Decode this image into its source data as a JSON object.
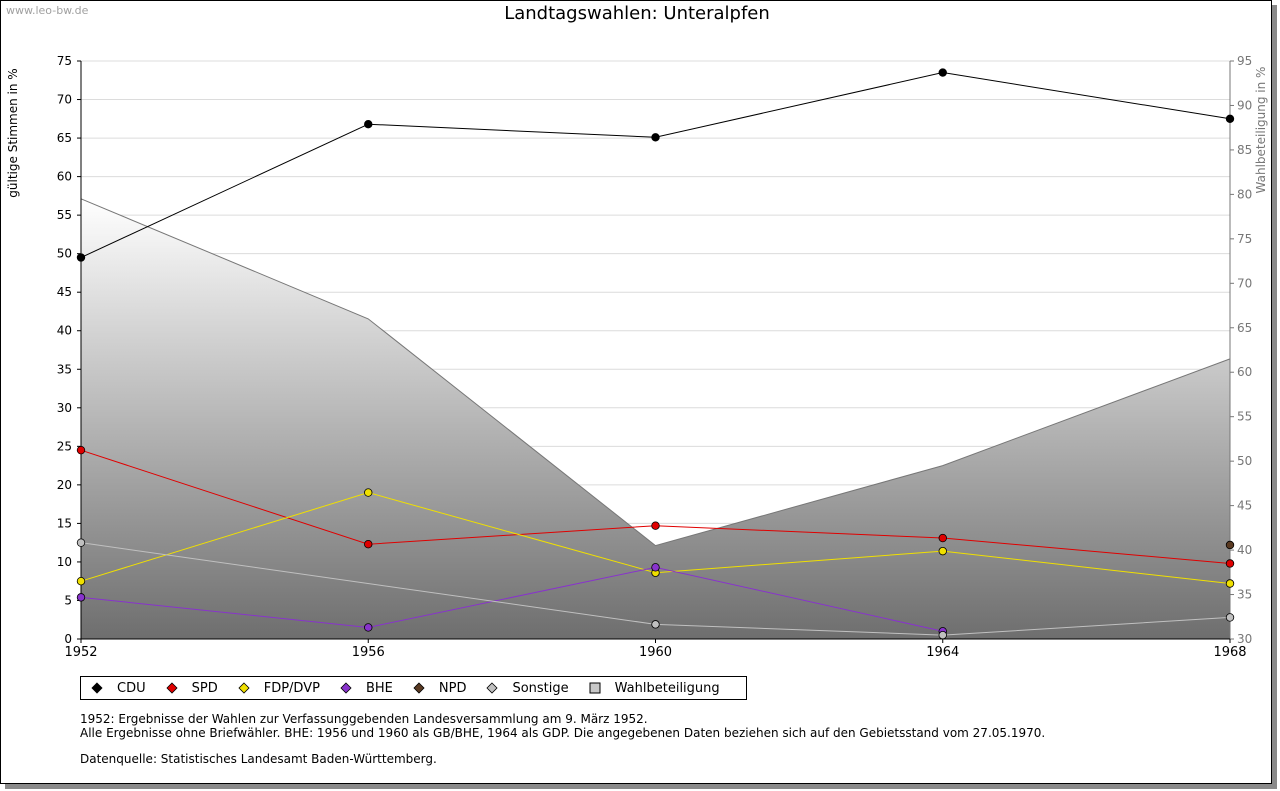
{
  "watermark": "www.leo-bw.de",
  "chart_data": {
    "type": "line",
    "title": "Landtagswahlen: Unteralpfen",
    "ylabel": "gültige Stimmen in %",
    "ylabel_right": "Wahlbeteiligung in %",
    "x": [
      1952,
      1956,
      1960,
      1964,
      1968
    ],
    "xlim": [
      1952,
      1968
    ],
    "ylim": [
      0,
      75
    ],
    "ylim_right": [
      30,
      95
    ],
    "yticks": [
      0,
      5,
      10,
      15,
      20,
      25,
      30,
      35,
      40,
      45,
      50,
      55,
      60,
      65,
      70,
      75
    ],
    "yticks_right": [
      30,
      35,
      40,
      45,
      50,
      55,
      60,
      65,
      70,
      75,
      80,
      85,
      90,
      95
    ],
    "grid": true,
    "series": [
      {
        "name": "CDU",
        "color": "#000000",
        "values": [
          49.5,
          66.8,
          65.1,
          73.5,
          67.5
        ]
      },
      {
        "name": "SPD",
        "color": "#e00000",
        "values": [
          24.5,
          12.3,
          14.7,
          13.1,
          9.8
        ]
      },
      {
        "name": "FDP/DVP",
        "color": "#f0e000",
        "values": [
          7.5,
          19.0,
          8.6,
          11.4,
          7.2
        ]
      },
      {
        "name": "BHE",
        "color": "#8833cc",
        "values": [
          5.4,
          1.5,
          9.3,
          1.0,
          null
        ]
      },
      {
        "name": "NPD",
        "color": "#5a3a22",
        "values": [
          null,
          null,
          null,
          null,
          12.2
        ]
      },
      {
        "name": "Sonstige",
        "color": "#c0c0c0",
        "values": [
          12.5,
          null,
          1.9,
          0.5,
          2.8
        ]
      }
    ],
    "turnout": {
      "name": "Wahlbeteiligung",
      "axis": "right",
      "values": [
        79.5,
        66.0,
        40.5,
        49.5,
        61.5
      ]
    },
    "legend_position": "bottom"
  },
  "notes": {
    "line1": "1952: Ergebnisse der Wahlen zur Verfassunggebenden Landesversammlung am 9. März 1952.",
    "line2": "Alle Ergebnisse ohne Briefwähler. BHE: 1956 und 1960 als GB/BHE, 1964 als GDP. Die angegebenen Daten beziehen sich auf den Gebietsstand vom 27.05.1970.",
    "source": "Datenquelle: Statistisches Landesamt Baden-Württemberg."
  }
}
